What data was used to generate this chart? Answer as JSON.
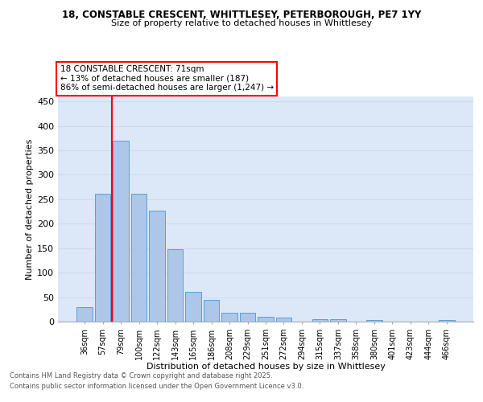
{
  "title_line1": "18, CONSTABLE CRESCENT, WHITTLESEY, PETERBOROUGH, PE7 1YY",
  "title_line2": "Size of property relative to detached houses in Whittlesey",
  "xlabel": "Distribution of detached houses by size in Whittlesey",
  "ylabel": "Number of detached properties",
  "categories": [
    "36sqm",
    "57sqm",
    "79sqm",
    "100sqm",
    "122sqm",
    "143sqm",
    "165sqm",
    "186sqm",
    "208sqm",
    "229sqm",
    "251sqm",
    "272sqm",
    "294sqm",
    "315sqm",
    "337sqm",
    "358sqm",
    "380sqm",
    "401sqm",
    "423sqm",
    "444sqm",
    "466sqm"
  ],
  "values": [
    30,
    262,
    369,
    262,
    226,
    148,
    60,
    45,
    18,
    18,
    10,
    8,
    0,
    5,
    5,
    0,
    3,
    0,
    0,
    0,
    3
  ],
  "bar_color": "#aec6e8",
  "bar_edge_color": "#5a9fd4",
  "red_line_x": 1.5,
  "annotation_text": "18 CONSTABLE CRESCENT: 71sqm\n← 13% of detached houses are smaller (187)\n86% of semi-detached houses are larger (1,247) →",
  "ylim_max": 460,
  "yticks": [
    0,
    50,
    100,
    150,
    200,
    250,
    300,
    350,
    400,
    450
  ],
  "grid_color": "#d0d8e8",
  "plot_bg_color": "#dce8f8",
  "footer_line1": "Contains HM Land Registry data © Crown copyright and database right 2025.",
  "footer_line2": "Contains public sector information licensed under the Open Government Licence v3.0."
}
